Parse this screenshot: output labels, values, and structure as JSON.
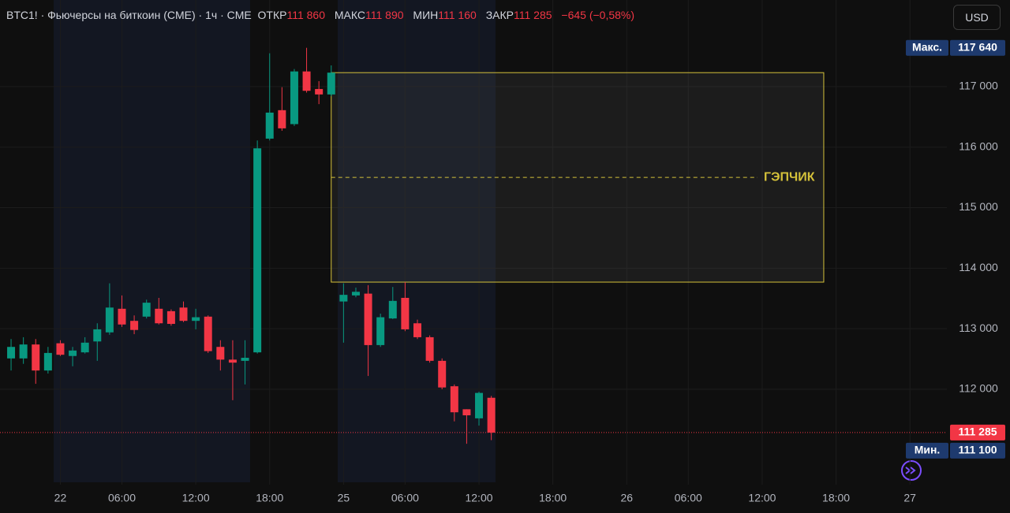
{
  "header": {
    "title": "BTC1! · Фьючерсы на биткоин (CME) · 1ч · CME",
    "open_label": "ОТКР",
    "open": "111 860",
    "high_label": "МАКС",
    "high": "111 890",
    "low_label": "МИН",
    "low": "111 160",
    "close_label": "ЗАКР",
    "close": "111 285",
    "change": "−645 (−0,58%)"
  },
  "currency": "USD",
  "chart_data": {
    "type": "candlestick",
    "open": [
      112510,
      112510,
      112740,
      112310,
      112760,
      112550,
      112610,
      112790,
      112940,
      113330,
      113130,
      113200,
      113330,
      113290,
      113350,
      113130,
      113200,
      112700,
      112490,
      112470,
      112610,
      116140,
      116610,
      116380,
      117250,
      116960,
      116870,
      113450,
      113550,
      113580,
      112730,
      113170,
      113510,
      113090,
      112860,
      112470,
      112050,
      111670,
      111520,
      111860
    ],
    "high": [
      112830,
      112860,
      112830,
      112700,
      112810,
      112700,
      112860,
      113090,
      113750,
      113550,
      113220,
      113480,
      113510,
      113320,
      113450,
      113330,
      113220,
      112810,
      112810,
      112810,
      116110,
      117550,
      116990,
      117290,
      117640,
      117090,
      117350,
      113750,
      113680,
      113720,
      113250,
      113690,
      113770,
      113150,
      112890,
      112510,
      112080,
      111670,
      111960,
      111890
    ],
    "low": [
      112310,
      112420,
      112090,
      112260,
      112550,
      112380,
      112590,
      112470,
      112900,
      113030,
      112910,
      113170,
      113070,
      113050,
      113110,
      112990,
      112600,
      112310,
      111820,
      112080,
      112590,
      116110,
      116270,
      116350,
      116900,
      116710,
      116840,
      112770,
      113520,
      112220,
      112700,
      113160,
      112960,
      112830,
      112440,
      112000,
      111470,
      111100,
      111400,
      111160
    ],
    "close": [
      112700,
      112740,
      112310,
      112600,
      112570,
      112640,
      112770,
      112990,
      113350,
      113070,
      112980,
      113430,
      113090,
      113080,
      113130,
      113190,
      112630,
      112490,
      112440,
      112520,
      115980,
      116570,
      116310,
      117250,
      116930,
      116870,
      117230,
      113560,
      113610,
      112730,
      113190,
      113460,
      112990,
      112860,
      112470,
      112030,
      111620,
      111570,
      111940,
      111285
    ],
    "up_color": "#089981",
    "down_color": "#f23645",
    "ylim": [
      110425,
      118430
    ],
    "yticks": [
      {
        "value": 112000,
        "label": "112 000"
      },
      {
        "value": 113000,
        "label": "113 000"
      },
      {
        "value": 114000,
        "label": "114 000"
      },
      {
        "value": 115000,
        "label": "115 000"
      },
      {
        "value": 116000,
        "label": "116 000"
      },
      {
        "value": 117000,
        "label": "117 000"
      }
    ],
    "xlim": [
      -0.9,
      76
    ],
    "xticks": [
      {
        "value": 4,
        "label": "22"
      },
      {
        "value": 9,
        "label": "06:00"
      },
      {
        "value": 15,
        "label": "12:00"
      },
      {
        "value": 21,
        "label": "18:00"
      },
      {
        "value": 27,
        "label": "25"
      },
      {
        "value": 32,
        "label": "06:00"
      },
      {
        "value": 38,
        "label": "12:00"
      },
      {
        "value": 44,
        "label": "18:00"
      },
      {
        "value": 50,
        "label": "26"
      },
      {
        "value": 55,
        "label": "06:00"
      },
      {
        "value": 61,
        "label": "12:00"
      },
      {
        "value": 67,
        "label": "18:00"
      },
      {
        "value": 73,
        "label": "27"
      }
    ],
    "grid": true,
    "gap_box": {
      "label": "ГЭПЧИК",
      "top": 117230,
      "bottom": 113770,
      "x_range": [
        26,
        66
      ],
      "color": "#d4c13a"
    },
    "price_markers": [
      {
        "name": "Макс.",
        "value": 117640,
        "label": "117 640",
        "color": "#1e3a6e"
      },
      {
        "value": 111285,
        "label": "111 285",
        "color": "#f23645"
      },
      {
        "name": "Мин.",
        "value": 111100,
        "label": "111 100",
        "color": "#1e3a6e"
      }
    ]
  }
}
